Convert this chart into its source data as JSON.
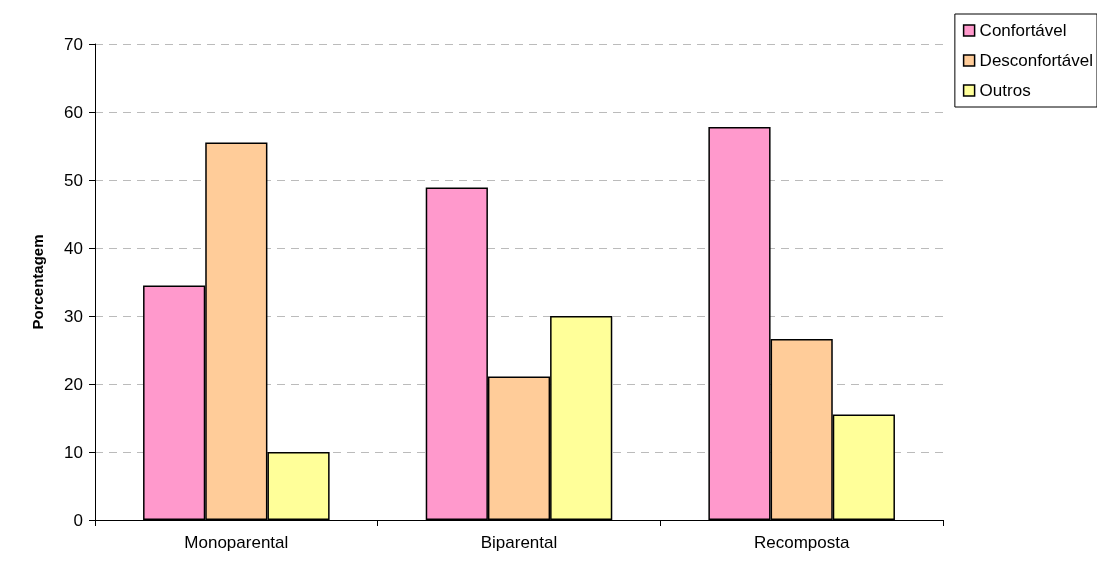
{
  "chart_data": {
    "type": "bar",
    "ylabel": "Porcentagem",
    "categories": [
      "Monoparental",
      "Biparental",
      "Recomposta"
    ],
    "series": [
      {
        "name": "Confortável",
        "color": "#ff99cc",
        "values": [
          34.5,
          48.9,
          57.8
        ]
      },
      {
        "name": "Desconfortável",
        "color": "#ffcc99",
        "values": [
          55.5,
          21.1,
          26.6
        ]
      },
      {
        "name": "Outros",
        "color": "#ffff99",
        "values": [
          10.0,
          30.0,
          15.5
        ]
      }
    ],
    "ylim": [
      0,
      70
    ],
    "yticks": [
      0,
      10,
      20,
      30,
      40,
      50,
      60,
      70
    ],
    "grid": "y",
    "legend": "top right"
  }
}
